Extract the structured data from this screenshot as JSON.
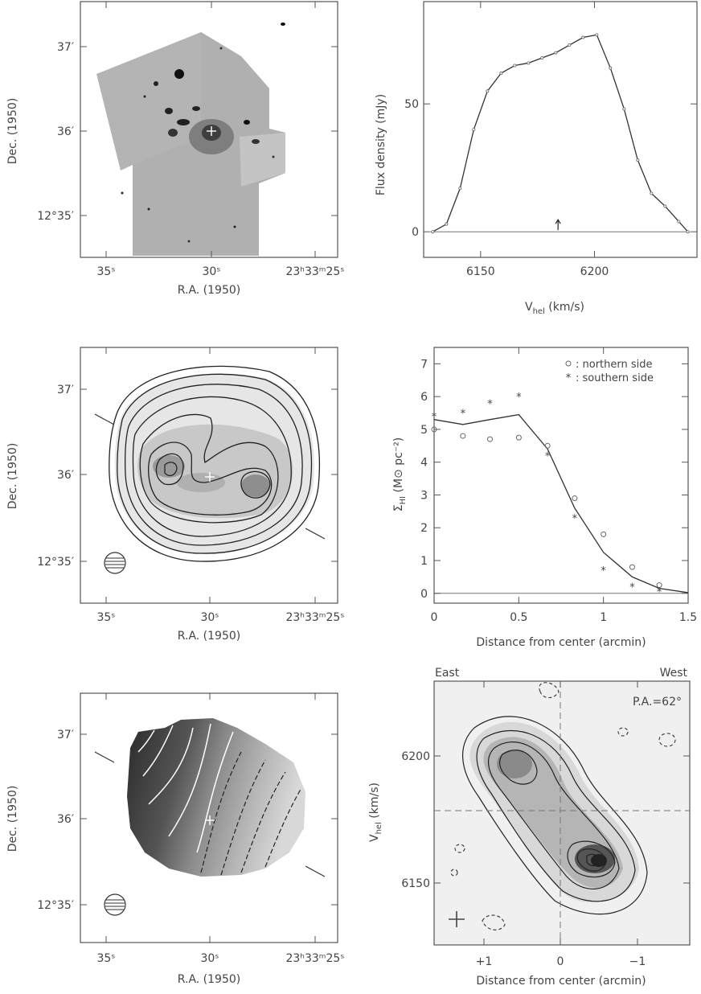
{
  "colors": {
    "axis": "#555555",
    "contour": "#222222",
    "grey_bg": "#bdbdbd",
    "dark": "#1a1a1a"
  },
  "panels": {
    "optical": {
      "xlabel": "R.A. (1950)",
      "ylabel": "Dec. (1950)",
      "xticks": [
        "35ˢ",
        "30ˢ",
        "23ʰ33ᵐ25ˢ"
      ],
      "yticks": [
        "37′",
        "36′",
        "12°35′"
      ]
    },
    "moment0": {
      "xlabel": "R.A. (1950)",
      "ylabel": "Dec. (1950)",
      "xticks": [
        "35ˢ",
        "30ˢ",
        "23ʰ33ᵐ25ˢ"
      ],
      "yticks": [
        "37′",
        "36′",
        "12°35′"
      ]
    },
    "velfield": {
      "xlabel": "R.A. (1950)",
      "ylabel": "Dec. (1950)",
      "xticks": [
        "35ˢ",
        "30ˢ",
        "23ʰ33ᵐ25ˢ"
      ],
      "yticks": [
        "37′",
        "36′",
        "12°35′"
      ]
    },
    "pv": {
      "xlabel": "Distance from center (arcmin)",
      "ylabel_main": "V",
      "ylabel_sub": "hel",
      "ylabel_unit": " (km/s)",
      "east": "East",
      "west": "West",
      "pa": "P.A.=62°"
    }
  },
  "chart_data": [
    {
      "type": "line",
      "title": "",
      "xlabel_main": "V",
      "xlabel_sub": "hel",
      "xlabel_unit": " (km/s)",
      "ylabel": "Flux density (mJy)",
      "xlim": [
        6125,
        6245
      ],
      "ylim": [
        -10,
        90
      ],
      "xticks": [
        6150,
        6200
      ],
      "yticks": [
        0,
        50
      ],
      "x": [
        6129,
        6135,
        6141,
        6147,
        6153,
        6159,
        6165,
        6171,
        6177,
        6183,
        6189,
        6195,
        6201,
        6207,
        6213,
        6219,
        6225,
        6231,
        6237,
        6241
      ],
      "y": [
        0,
        3,
        17,
        40,
        55,
        62,
        65,
        66,
        68,
        70,
        73,
        76,
        77,
        64,
        48,
        28,
        15,
        10,
        4,
        0
      ],
      "arrow_x": 6184
    },
    {
      "type": "scatter",
      "title": "",
      "xlabel": "Distance from center (arcmin)",
      "ylabel_main": "Σ",
      "ylabel_sub": "HI",
      "ylabel_unit": " (M⊙ pc⁻²)",
      "xlim": [
        0,
        1.5
      ],
      "ylim": [
        -0.3,
        7.5
      ],
      "xticks": [
        "0",
        "0.5",
        "1",
        "1.5"
      ],
      "yticks": [
        "0",
        "1",
        "2",
        "3",
        "4",
        "5",
        "6",
        "7"
      ],
      "legend_position": "top-right",
      "series": [
        {
          "name": "northern side",
          "marker": "o",
          "x": [
            0,
            0.17,
            0.33,
            0.5,
            0.67,
            0.83,
            1.0,
            1.17,
            1.33
          ],
          "y": [
            5.0,
            4.8,
            4.7,
            4.75,
            4.5,
            2.9,
            1.8,
            0.8,
            0.25
          ]
        },
        {
          "name": "southern side",
          "marker": "*",
          "x": [
            0,
            0.17,
            0.33,
            0.5,
            0.67,
            0.83,
            1.0,
            1.17,
            1.33
          ],
          "y": [
            5.4,
            5.5,
            5.8,
            6.0,
            4.2,
            2.3,
            0.7,
            0.2,
            0.05
          ]
        },
        {
          "name": "",
          "marker": "line",
          "x": [
            0,
            0.17,
            0.33,
            0.5,
            0.67,
            0.83,
            1.0,
            1.17,
            1.33,
            1.5
          ],
          "y": [
            5.3,
            5.15,
            5.3,
            5.45,
            4.4,
            2.6,
            1.25,
            0.5,
            0.15,
            0.02
          ]
        }
      ]
    }
  ]
}
